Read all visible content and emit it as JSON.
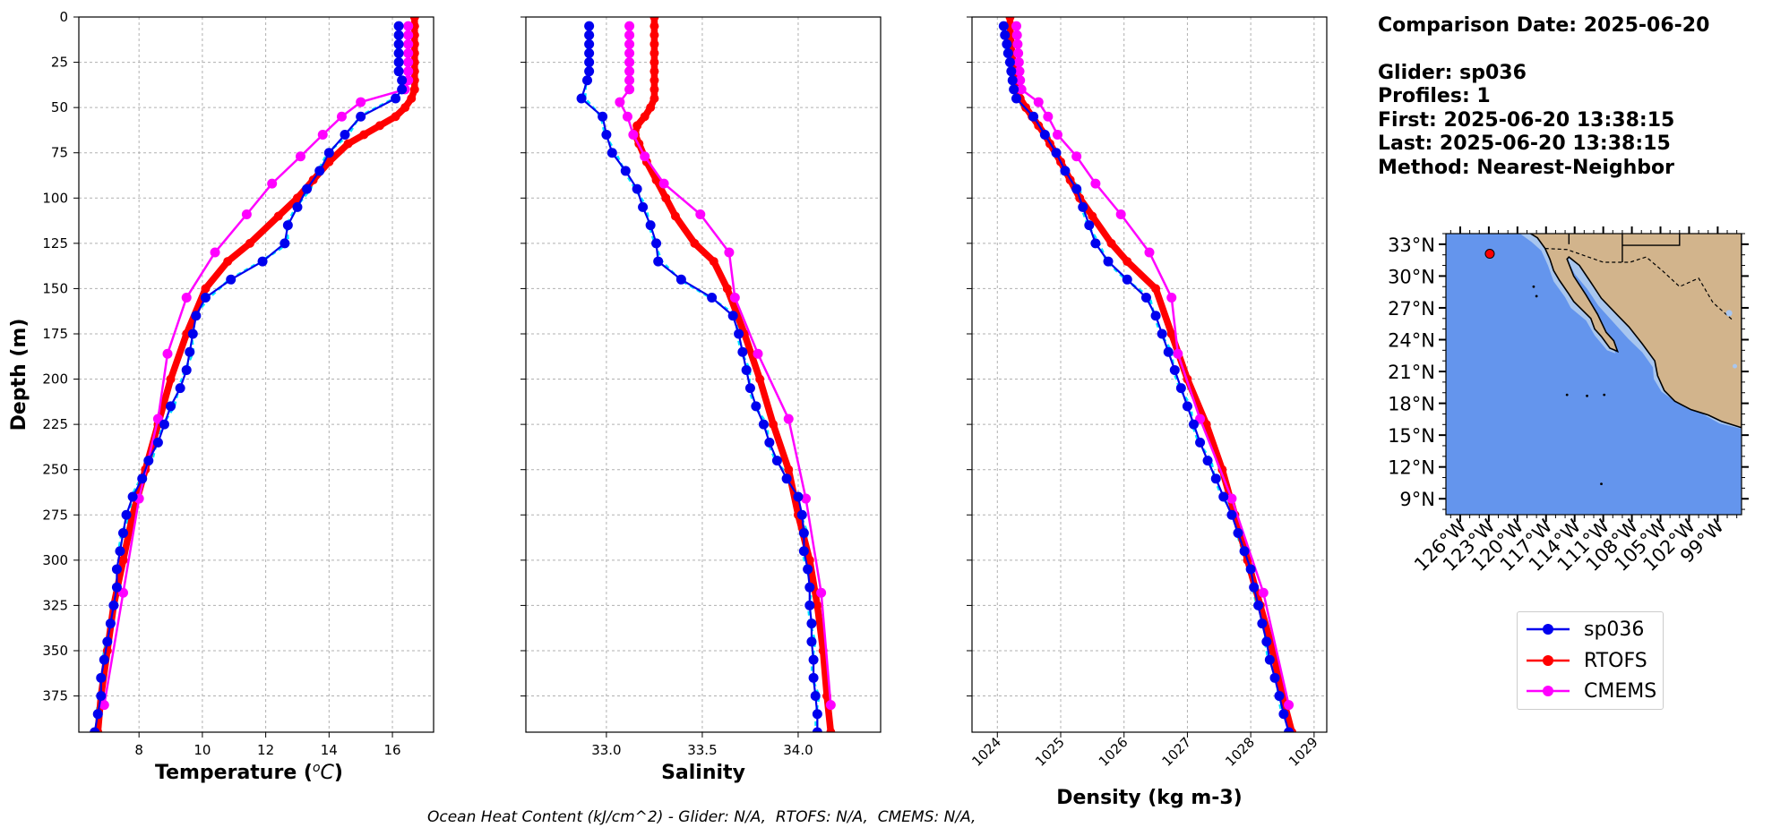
{
  "info": {
    "comparison_date": "Comparison Date: 2025-06-20",
    "glider": "Glider: sp036",
    "profiles": "Profiles: 1",
    "first": "First: 2025-06-20 13:38:15",
    "last": "Last: 2025-06-20 13:38:15",
    "method": "Method: Nearest-Neighbor"
  },
  "footer_text": "Ocean Heat Content (kJ/cm^2) - Glider: N/A,  RTOFS: N/A,  CMEMS: N/A,",
  "legend": [
    {
      "name": "sp036",
      "color": "#0000ee"
    },
    {
      "name": "RTOFS",
      "color": "#ff0000"
    },
    {
      "name": "CMEMS",
      "color": "#ff00ff"
    }
  ],
  "colors": {
    "glider": "#0000ee",
    "glider_raw": "#00e5ff",
    "rtofs": "#ff0000",
    "cmems": "#ff00ff",
    "ocean": "#6495ed",
    "shelf": "#a8c6ef",
    "land": "#d2b48c"
  },
  "chart_data": [
    {
      "type": "line",
      "xlabel": "Temperature (°C)",
      "ylabel": "Depth (m)",
      "xlim": [
        6.1,
        17.3
      ],
      "ylim": [
        395,
        0
      ],
      "xticks": [
        8,
        10,
        12,
        14,
        16
      ],
      "yticks": [
        0,
        25,
        50,
        75,
        100,
        125,
        150,
        175,
        200,
        225,
        250,
        275,
        300,
        325,
        350,
        375
      ],
      "grid": true,
      "series": [
        {
          "name": "sp036",
          "depth": [
            5,
            10,
            15,
            20,
            25,
            30,
            35,
            40,
            45,
            55,
            65,
            75,
            85,
            95,
            105,
            115,
            125,
            135,
            145,
            155,
            165,
            175,
            185,
            195,
            205,
            215,
            225,
            235,
            245,
            255,
            265,
            275,
            285,
            295,
            305,
            315,
            325,
            335,
            345,
            355,
            365,
            375,
            385,
            395
          ],
          "values": [
            16.2,
            16.2,
            16.2,
            16.2,
            16.2,
            16.2,
            16.3,
            16.3,
            16.1,
            15.0,
            14.5,
            14.0,
            13.7,
            13.3,
            13.0,
            12.7,
            12.6,
            11.9,
            10.9,
            10.1,
            9.8,
            9.7,
            9.6,
            9.5,
            9.3,
            9.0,
            8.8,
            8.6,
            8.3,
            8.1,
            7.8,
            7.6,
            7.5,
            7.4,
            7.3,
            7.3,
            7.2,
            7.1,
            7.0,
            6.9,
            6.8,
            6.8,
            6.7,
            6.6
          ]
        },
        {
          "name": "RTOFS",
          "depth": [
            0,
            5,
            10,
            15,
            20,
            25,
            30,
            35,
            40,
            45,
            50,
            55,
            60,
            65,
            70,
            80,
            90,
            100,
            110,
            125,
            135,
            150,
            175,
            200,
            225,
            250,
            275,
            300,
            325,
            350,
            375,
            395
          ],
          "values": [
            16.7,
            16.7,
            16.7,
            16.7,
            16.7,
            16.7,
            16.7,
            16.7,
            16.7,
            16.6,
            16.4,
            16.1,
            15.6,
            15.1,
            14.6,
            14.0,
            13.5,
            13.0,
            12.4,
            11.5,
            10.8,
            10.1,
            9.5,
            9.0,
            8.6,
            8.2,
            7.8,
            7.5,
            7.2,
            7.0,
            6.8,
            6.7
          ]
        },
        {
          "name": "CMEMS",
          "depth": [
            5,
            10,
            15,
            20,
            25,
            30,
            35,
            40,
            47,
            55,
            65,
            77,
            92,
            109,
            130,
            155,
            186,
            222,
            266,
            318,
            380
          ],
          "values": [
            16.5,
            16.5,
            16.5,
            16.5,
            16.5,
            16.5,
            16.5,
            16.4,
            15.0,
            14.4,
            13.8,
            13.1,
            12.2,
            11.4,
            10.4,
            9.5,
            8.9,
            8.6,
            8.0,
            7.5,
            6.9
          ]
        }
      ]
    },
    {
      "type": "line",
      "xlabel": "Salinity",
      "xlim": [
        32.58,
        34.43
      ],
      "ylim": [
        395,
        0
      ],
      "xticks": [
        33.0,
        33.5,
        34.0
      ],
      "grid": true,
      "series": [
        {
          "name": "sp036",
          "depth": [
            5,
            10,
            15,
            20,
            25,
            30,
            35,
            45,
            55,
            65,
            75,
            85,
            95,
            105,
            115,
            125,
            135,
            145,
            155,
            165,
            175,
            185,
            195,
            205,
            215,
            225,
            235,
            245,
            255,
            265,
            275,
            285,
            295,
            305,
            315,
            325,
            335,
            345,
            355,
            365,
            375,
            385,
            395
          ],
          "values": [
            32.91,
            32.91,
            32.91,
            32.91,
            32.91,
            32.91,
            32.9,
            32.87,
            32.98,
            33.0,
            33.03,
            33.1,
            33.16,
            33.19,
            33.23,
            33.26,
            33.27,
            33.39,
            33.55,
            33.66,
            33.69,
            33.71,
            33.73,
            33.75,
            33.78,
            33.82,
            33.85,
            33.89,
            33.94,
            34.0,
            34.02,
            34.03,
            34.03,
            34.05,
            34.06,
            34.06,
            34.07,
            34.07,
            34.08,
            34.08,
            34.09,
            34.1,
            34.1
          ]
        },
        {
          "name": "RTOFS",
          "depth": [
            0,
            5,
            10,
            15,
            20,
            25,
            30,
            35,
            40,
            45,
            50,
            55,
            60,
            65,
            70,
            80,
            90,
            100,
            110,
            125,
            135,
            150,
            175,
            200,
            225,
            250,
            275,
            300,
            325,
            350,
            375,
            395
          ],
          "values": [
            33.25,
            33.25,
            33.25,
            33.25,
            33.25,
            33.25,
            33.25,
            33.25,
            33.25,
            33.25,
            33.23,
            33.2,
            33.16,
            33.15,
            33.17,
            33.21,
            33.26,
            33.31,
            33.36,
            33.46,
            33.56,
            33.63,
            33.72,
            33.8,
            33.87,
            33.95,
            34.0,
            34.06,
            34.1,
            34.13,
            34.15,
            34.17
          ]
        },
        {
          "name": "CMEMS",
          "depth": [
            5,
            10,
            15,
            20,
            25,
            30,
            35,
            40,
            47,
            55,
            65,
            77,
            92,
            109,
            130,
            155,
            186,
            222,
            266,
            318,
            380
          ],
          "values": [
            33.12,
            33.12,
            33.12,
            33.12,
            33.12,
            33.12,
            33.12,
            33.12,
            33.07,
            33.11,
            33.14,
            33.2,
            33.3,
            33.49,
            33.64,
            33.67,
            33.79,
            33.95,
            34.04,
            34.12,
            34.17
          ]
        }
      ]
    },
    {
      "type": "line",
      "xlabel": "Density (kg m-3)",
      "xlim": [
        1023.6,
        1029.2
      ],
      "ylim": [
        395,
        0
      ],
      "xticks": [
        1024,
        1025,
        1026,
        1027,
        1028,
        1029
      ],
      "grid": true,
      "series": [
        {
          "name": "sp036",
          "depth": [
            5,
            10,
            15,
            20,
            25,
            30,
            35,
            40,
            45,
            55,
            65,
            75,
            85,
            95,
            105,
            115,
            125,
            135,
            145,
            155,
            165,
            175,
            185,
            195,
            205,
            215,
            225,
            235,
            245,
            255,
            265,
            275,
            285,
            295,
            305,
            315,
            325,
            335,
            345,
            355,
            365,
            375,
            385,
            395
          ],
          "values": [
            1024.1,
            1024.12,
            1024.15,
            1024.17,
            1024.2,
            1024.22,
            1024.24,
            1024.26,
            1024.3,
            1024.57,
            1024.75,
            1024.93,
            1025.07,
            1025.25,
            1025.35,
            1025.45,
            1025.55,
            1025.75,
            1026.05,
            1026.35,
            1026.5,
            1026.6,
            1026.7,
            1026.8,
            1026.9,
            1027.0,
            1027.1,
            1027.2,
            1027.32,
            1027.45,
            1027.57,
            1027.7,
            1027.8,
            1027.9,
            1028.0,
            1028.05,
            1028.12,
            1028.18,
            1028.25,
            1028.3,
            1028.38,
            1028.45,
            1028.52,
            1028.6
          ]
        },
        {
          "name": "RTOFS",
          "depth": [
            0,
            5,
            10,
            15,
            20,
            25,
            30,
            35,
            40,
            45,
            50,
            55,
            60,
            65,
            70,
            80,
            90,
            100,
            110,
            125,
            135,
            150,
            175,
            200,
            225,
            250,
            275,
            300,
            325,
            350,
            375,
            395
          ],
          "values": [
            1024.2,
            1024.2,
            1024.21,
            1024.22,
            1024.23,
            1024.25,
            1024.27,
            1024.29,
            1024.32,
            1024.36,
            1024.45,
            1024.55,
            1024.65,
            1024.75,
            1024.83,
            1025.0,
            1025.15,
            1025.3,
            1025.5,
            1025.8,
            1026.05,
            1026.5,
            1026.75,
            1027.0,
            1027.3,
            1027.55,
            1027.75,
            1027.95,
            1028.15,
            1028.35,
            1028.5,
            1028.65
          ]
        },
        {
          "name": "CMEMS",
          "depth": [
            5,
            10,
            15,
            20,
            25,
            30,
            35,
            40,
            47,
            55,
            65,
            77,
            92,
            109,
            130,
            155,
            186,
            222,
            266,
            318,
            380
          ],
          "values": [
            1024.3,
            1024.31,
            1024.32,
            1024.33,
            1024.34,
            1024.35,
            1024.36,
            1024.38,
            1024.65,
            1024.8,
            1024.95,
            1025.25,
            1025.55,
            1025.95,
            1026.4,
            1026.75,
            1026.85,
            1027.2,
            1027.7,
            1028.2,
            1028.6
          ]
        }
      ]
    },
    {
      "type": "map",
      "lon_range": [
        -127.5,
        -96.5
      ],
      "lat_range": [
        7.5,
        34.0
      ],
      "lon_ticks": [
        "126°W",
        "123°W",
        "120°W",
        "117°W",
        "114°W",
        "111°W",
        "108°W",
        "105°W",
        "102°W",
        "99°W"
      ],
      "lat_ticks": [
        "33°N",
        "30°N",
        "27°N",
        "24°N",
        "21°N",
        "18°N",
        "15°N",
        "12°N",
        "9°N"
      ],
      "glider_position": {
        "lon": -122.9,
        "lat": 32.1
      }
    }
  ]
}
